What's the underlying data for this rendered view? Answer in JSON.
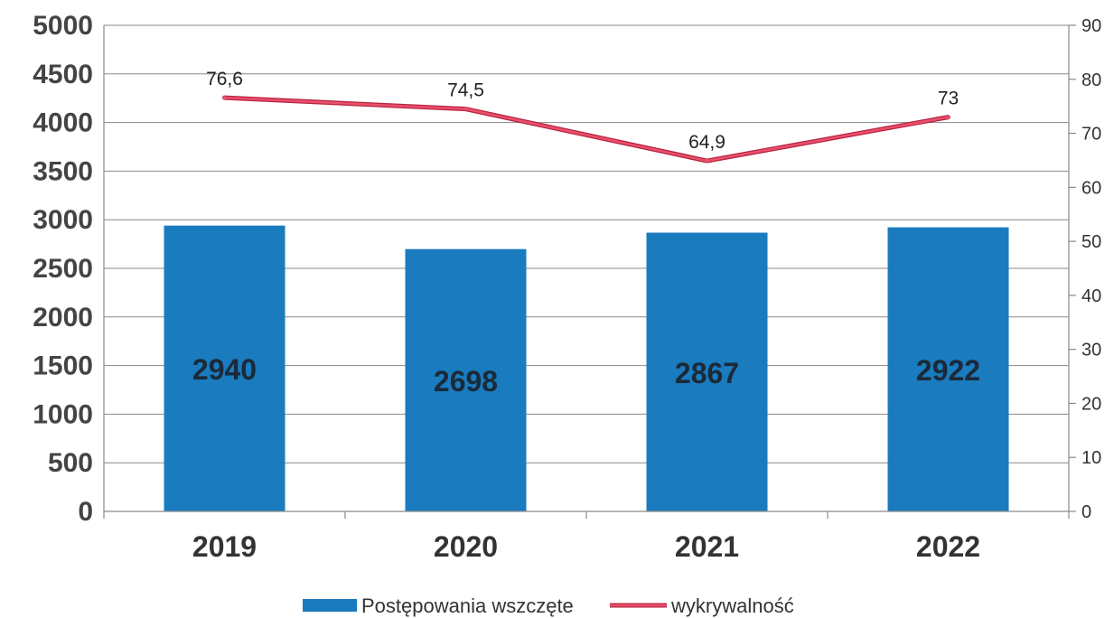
{
  "chart_data": {
    "type": "bar",
    "categories": [
      "2019",
      "2020",
      "2021",
      "2022"
    ],
    "series": [
      {
        "name": "Postępowania wszczęte",
        "type": "bar",
        "axis": "left",
        "values": [
          2940,
          2698,
          2867,
          2922
        ],
        "labels": [
          "2940",
          "2698",
          "2867",
          "2922"
        ],
        "color": "#1a7bbf"
      },
      {
        "name": "wykrywalność",
        "type": "line",
        "axis": "right",
        "values": [
          76.6,
          74.5,
          64.9,
          73
        ],
        "labels": [
          "76,6",
          "74,5",
          "64,9",
          "73"
        ],
        "color": "#e8506e"
      }
    ],
    "y_left": {
      "range": [
        0,
        5000
      ],
      "ticks": [
        "0",
        "500",
        "1000",
        "1500",
        "2000",
        "2500",
        "3000",
        "3500",
        "4000",
        "4500",
        "5000"
      ]
    },
    "y_right": {
      "range": [
        0,
        90
      ],
      "ticks": [
        "0",
        "10",
        "20",
        "30",
        "40",
        "50",
        "60",
        "70",
        "80",
        "90"
      ]
    },
    "grid": true,
    "legend": "bottom-center"
  }
}
